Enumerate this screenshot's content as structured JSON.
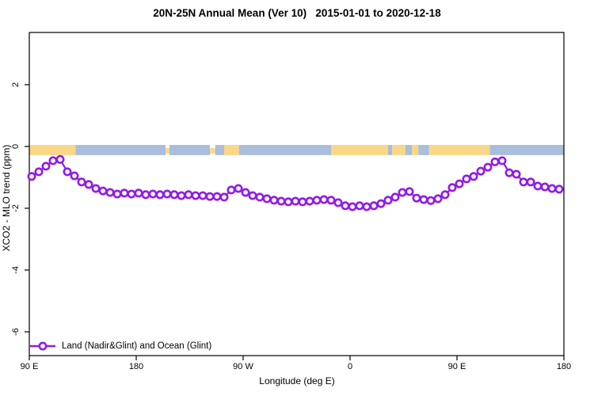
{
  "title": "20N-25N Annual Mean (Ver 10)   2015-01-01 to 2020-12-18",
  "chart_data": {
    "type": "line",
    "title": "20N-25N Annual Mean (Ver 10)   2015-01-01 to 2020-12-18",
    "xlabel": "Longitude (deg E)",
    "ylabel": "XCO2 - MLO trend (ppm)",
    "xlim": [
      90,
      540
    ],
    "ylim": [
      -6.77,
      3.69
    ],
    "grid": false,
    "x_ticks": [
      {
        "lon": 90,
        "label": "90 E"
      },
      {
        "lon": 180,
        "label": "180"
      },
      {
        "lon": 270,
        "label": "90 W"
      },
      {
        "lon": 360,
        "label": "0"
      },
      {
        "lon": 450,
        "label": "90 E"
      },
      {
        "lon": 540,
        "label": "180"
      }
    ],
    "y_ticks": [
      {
        "value": 2,
        "label": "2"
      },
      {
        "value": 0,
        "label": "0"
      },
      {
        "value": -2,
        "label": "-2"
      },
      {
        "value": -4,
        "label": "-4"
      },
      {
        "value": -6,
        "label": "-6"
      }
    ],
    "series": [
      {
        "name": "Land (Nadir&Glint) and Ocean (Glint)",
        "color": "#911CE6",
        "marker": "open-circle",
        "x_start": 92,
        "x_step": 6,
        "values": [
          -0.97,
          -0.82,
          -0.64,
          -0.46,
          -0.42,
          -0.82,
          -0.95,
          -1.15,
          -1.23,
          -1.36,
          -1.44,
          -1.49,
          -1.54,
          -1.51,
          -1.54,
          -1.51,
          -1.56,
          -1.54,
          -1.56,
          -1.54,
          -1.56,
          -1.59,
          -1.56,
          -1.59,
          -1.59,
          -1.62,
          -1.62,
          -1.64,
          -1.41,
          -1.36,
          -1.49,
          -1.59,
          -1.64,
          -1.69,
          -1.74,
          -1.77,
          -1.79,
          -1.77,
          -1.79,
          -1.77,
          -1.74,
          -1.72,
          -1.74,
          -1.82,
          -1.92,
          -1.95,
          -1.92,
          -1.95,
          -1.92,
          -1.85,
          -1.74,
          -1.64,
          -1.49,
          -1.46,
          -1.67,
          -1.72,
          -1.75,
          -1.69,
          -1.56,
          -1.33,
          -1.21,
          -1.05,
          -0.97,
          -0.8,
          -0.67,
          -0.5,
          -0.46,
          -0.85,
          -0.9,
          -1.15,
          -1.15,
          -1.28,
          -1.31,
          -1.36,
          -1.38
        ]
      }
    ],
    "map_strip": {
      "description": "land/ocean band along 20N-25N drawn at y=0",
      "y_top": 0.05,
      "y_bottom": -0.28,
      "land_color": "#FAD687",
      "ocean_color": "#A8BEDA",
      "segments": [
        {
          "type": "land",
          "from": 90,
          "to": 129,
          "thin": false
        },
        {
          "type": "ocean",
          "from": 129,
          "to": 204.7,
          "thin": false
        },
        {
          "type": "land",
          "from": 204.7,
          "to": 208,
          "thin": true
        },
        {
          "type": "ocean",
          "from": 208,
          "to": 242,
          "thin": false
        },
        {
          "type": "land",
          "from": 242,
          "to": 246.5,
          "thin": true
        },
        {
          "type": "ocean",
          "from": 246.5,
          "to": 254,
          "thin": false
        },
        {
          "type": "land",
          "from": 254,
          "to": 266.5,
          "thin": false
        },
        {
          "type": "ocean",
          "from": 266.5,
          "to": 344,
          "thin": false
        },
        {
          "type": "land",
          "from": 344,
          "to": 392,
          "thin": false
        },
        {
          "type": "ocean",
          "from": 392,
          "to": 395.5,
          "thin": false
        },
        {
          "type": "land",
          "from": 395.5,
          "to": 406.5,
          "thin": false
        },
        {
          "type": "ocean",
          "from": 406.5,
          "to": 412,
          "thin": false
        },
        {
          "type": "land",
          "from": 412,
          "to": 417.5,
          "thin": false
        },
        {
          "type": "ocean",
          "from": 417.5,
          "to": 426.5,
          "thin": false
        },
        {
          "type": "land",
          "from": 426.5,
          "to": 477.5,
          "thin": false
        },
        {
          "type": "ocean",
          "from": 477.5,
          "to": 540,
          "thin": false
        }
      ]
    },
    "legend": {
      "position": "bottom-left",
      "entries": [
        {
          "label": "Land (Nadir&Glint) and Ocean (Glint)",
          "color": "#911CE6"
        }
      ]
    }
  }
}
